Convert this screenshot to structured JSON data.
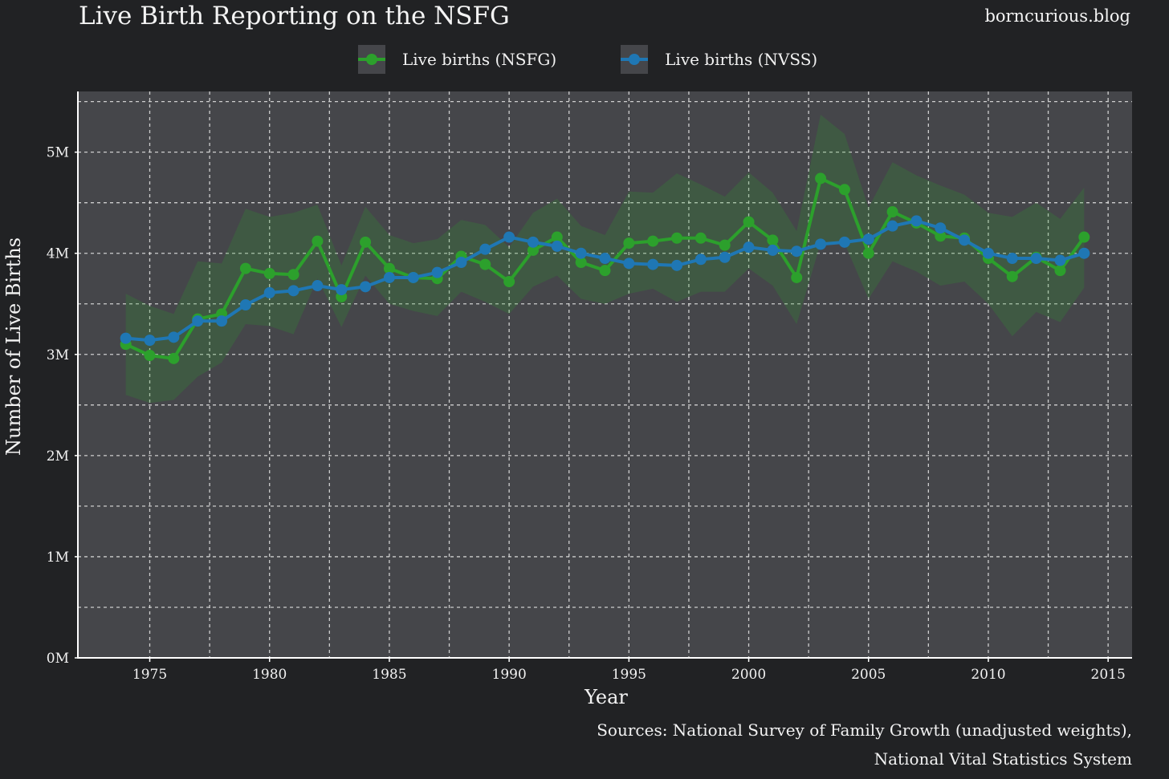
{
  "title": "Live Birth Reporting on the NSFG",
  "watermark": "borncurious.blog",
  "source_line1": "Sources: National Survey of Family Growth (unadjusted weights),",
  "source_line2": "National Vital Statistics System",
  "colors": {
    "background": "#212224",
    "panel": "#45464a",
    "nsfg": "#2ca02c",
    "nvss": "#1f77b4",
    "ribbon": "#3a5a3c"
  },
  "chart_data": {
    "type": "line",
    "title": "Live Birth Reporting on the NSFG",
    "xlabel": "Year",
    "ylabel": "Number of Live Births",
    "xlim": [
      1972,
      2016
    ],
    "ylim": [
      0,
      5.6
    ],
    "y_units": "M",
    "x_ticks": [
      1975,
      1980,
      1985,
      1990,
      1995,
      2000,
      2005,
      2010,
      2015
    ],
    "y_ticks": [
      0,
      1,
      2,
      3,
      4,
      5
    ],
    "y_tick_labels": [
      "0M",
      "1M",
      "2M",
      "3M",
      "4M",
      "5M"
    ],
    "grid": true,
    "legend_position": "top",
    "x": [
      1974,
      1975,
      1976,
      1977,
      1978,
      1979,
      1980,
      1981,
      1982,
      1983,
      1984,
      1985,
      1986,
      1987,
      1988,
      1989,
      1990,
      1991,
      1992,
      1993,
      1994,
      1995,
      1996,
      1997,
      1998,
      1999,
      2000,
      2001,
      2002,
      2003,
      2004,
      2005,
      2006,
      2007,
      2008,
      2009,
      2010,
      2011,
      2012,
      2013,
      2014
    ],
    "series": [
      {
        "name": "Live births (NSFG)",
        "color": "#2ca02c",
        "values": [
          3.1,
          2.99,
          2.96,
          3.35,
          3.4,
          3.85,
          3.8,
          3.79,
          4.12,
          3.57,
          4.11,
          3.85,
          3.76,
          3.75,
          3.97,
          3.89,
          3.72,
          4.03,
          4.16,
          3.91,
          3.83,
          4.1,
          4.12,
          4.15,
          4.15,
          4.08,
          4.31,
          4.13,
          3.76,
          4.74,
          4.63,
          4.0,
          4.41,
          4.3,
          4.17,
          4.15,
          3.95,
          3.77,
          3.96,
          3.83,
          4.16
        ],
        "ci_lower": [
          2.6,
          2.52,
          2.55,
          2.78,
          2.92,
          3.3,
          3.28,
          3.2,
          3.75,
          3.27,
          3.78,
          3.5,
          3.43,
          3.38,
          3.62,
          3.52,
          3.4,
          3.67,
          3.78,
          3.55,
          3.5,
          3.6,
          3.65,
          3.52,
          3.62,
          3.62,
          3.85,
          3.68,
          3.3,
          4.1,
          4.1,
          3.55,
          3.92,
          3.82,
          3.68,
          3.72,
          3.5,
          3.18,
          3.42,
          3.32,
          3.66
        ],
        "ci_upper": [
          3.6,
          3.48,
          3.4,
          3.92,
          3.9,
          4.44,
          4.36,
          4.4,
          4.48,
          3.88,
          4.46,
          4.18,
          4.1,
          4.14,
          4.33,
          4.28,
          4.06,
          4.4,
          4.54,
          4.27,
          4.18,
          4.61,
          4.6,
          4.79,
          4.68,
          4.56,
          4.8,
          4.6,
          4.22,
          5.37,
          5.18,
          4.45,
          4.9,
          4.77,
          4.67,
          4.58,
          4.4,
          4.36,
          4.5,
          4.34,
          4.65
        ]
      },
      {
        "name": "Live births (NVSS)",
        "color": "#1f77b4",
        "values": [
          3.16,
          3.14,
          3.17,
          3.33,
          3.33,
          3.49,
          3.61,
          3.63,
          3.68,
          3.64,
          3.67,
          3.76,
          3.76,
          3.81,
          3.91,
          4.04,
          4.16,
          4.11,
          4.07,
          4.0,
          3.95,
          3.9,
          3.89,
          3.88,
          3.94,
          3.96,
          4.06,
          4.03,
          4.02,
          4.09,
          4.11,
          4.14,
          4.27,
          4.32,
          4.25,
          4.13,
          4.0,
          3.95,
          3.95,
          3.93,
          4.0
        ]
      }
    ]
  }
}
